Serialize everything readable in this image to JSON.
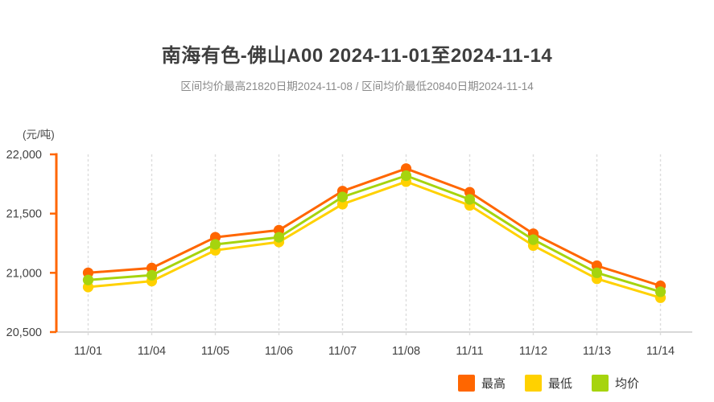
{
  "chart_data": {
    "type": "line",
    "title": "南海有色-佛山A00 2024-11-01至2024-11-14",
    "subtitle": "区间均价最高21820日期2024-11-08 / 区间均价最低20840日期2024-11-14",
    "unit_label": "(元/吨)",
    "categories": [
      "11/01",
      "11/04",
      "11/05",
      "11/06",
      "11/07",
      "11/08",
      "11/11",
      "11/12",
      "11/13",
      "11/14"
    ],
    "series": [
      {
        "key": "high",
        "name": "最高",
        "color": "#FF6600",
        "values": [
          21000,
          21040,
          21300,
          21360,
          21690,
          21880,
          21680,
          21330,
          21060,
          20890
        ]
      },
      {
        "key": "low",
        "name": "最低",
        "color": "#FFD100",
        "values": [
          20880,
          20930,
          21190,
          21260,
          21580,
          21770,
          21570,
          21230,
          20950,
          20790
        ]
      },
      {
        "key": "avg",
        "name": "均价",
        "color": "#A6D40E",
        "values": [
          20940,
          20980,
          21240,
          21300,
          21640,
          21820,
          21620,
          21280,
          21000,
          20840
        ]
      }
    ],
    "y_axis": {
      "min": 20500,
      "max": 22000,
      "ticks": [
        22000,
        21500,
        21000,
        20500
      ],
      "tick_labels": [
        "22,000",
        "21,500",
        "21,000",
        "20,500"
      ]
    },
    "legend": [
      "最高",
      "最低",
      "均价"
    ],
    "legend_position": "bottom-right",
    "grid": "vertical-dashed"
  },
  "colors": {
    "y_axis": "#FF6600",
    "x_axis": "#CCCCCC",
    "grid": "#DDDDDD",
    "axis_label": "#414141",
    "title": "#3E3E3E",
    "subtitle": "#8A8A8A"
  }
}
